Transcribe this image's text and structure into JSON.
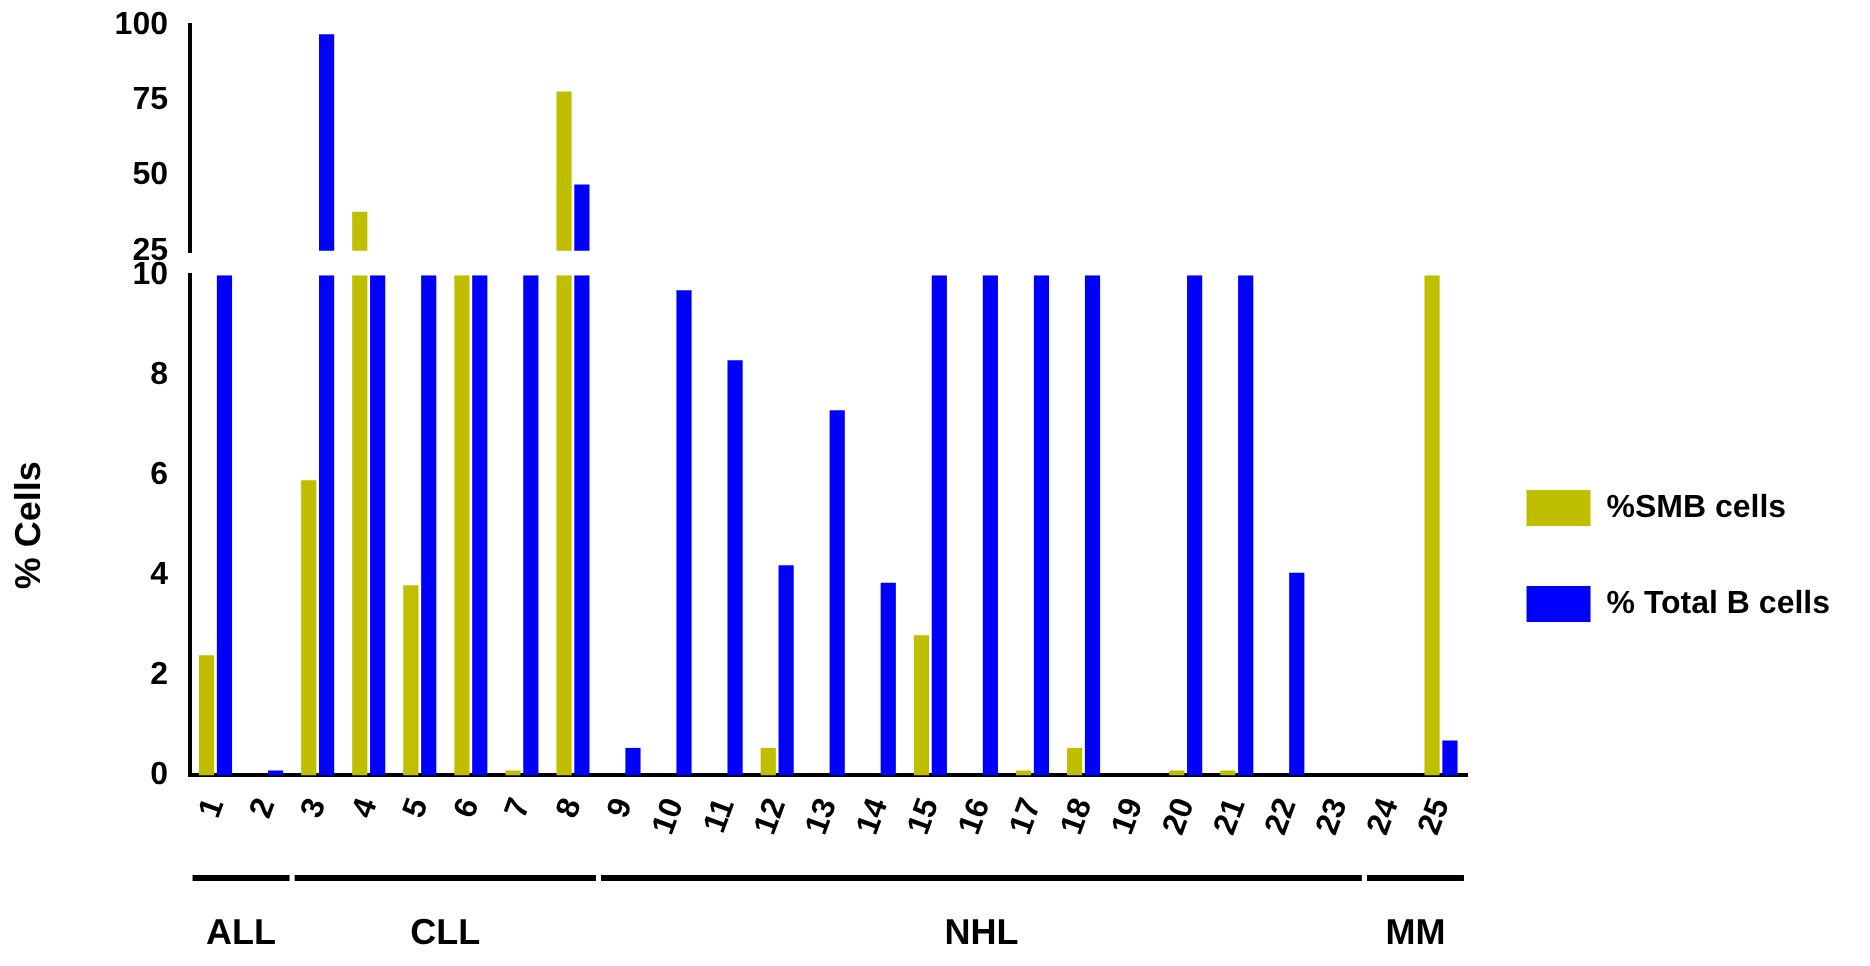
{
  "chart_data": [
    {
      "type": "bar",
      "categories": [
        "1",
        "2",
        "3",
        "4",
        "5",
        "6",
        "7",
        "8",
        "9",
        "10",
        "11",
        "12",
        "13",
        "14",
        "15",
        "16",
        "17",
        "18",
        "19",
        "20",
        "21",
        "22",
        "23",
        "24",
        "25"
      ],
      "series": [
        {
          "color": "#bfbf00",
          "values": [
            null,
            null,
            null,
            38,
            null,
            null,
            null,
            78,
            null,
            null,
            null,
            null,
            null,
            null,
            null,
            null,
            null,
            null,
            null,
            null,
            null,
            null,
            null,
            null,
            null
          ]
        },
        {
          "color": "#0000ff",
          "values": [
            null,
            null,
            97,
            null,
            null,
            null,
            null,
            47,
            null,
            null,
            null,
            null,
            null,
            null,
            null,
            null,
            null,
            null,
            null,
            null,
            null,
            null,
            null,
            null,
            null
          ]
        }
      ],
      "ylim": [
        25,
        100
      ],
      "yticks": [
        25,
        50,
        75,
        100
      ],
      "grid": false,
      "legend": false,
      "tick_labels": "y"
    },
    {
      "type": "bar",
      "categories": [
        "1",
        "2",
        "3",
        "4",
        "5",
        "6",
        "7",
        "8",
        "9",
        "10",
        "11",
        "12",
        "13",
        "14",
        "15",
        "16",
        "17",
        "18",
        "19",
        "20",
        "21",
        "22",
        "23",
        "24",
        "25"
      ],
      "series": [
        {
          "name": "%SMB cells",
          "color": "#bfbf00",
          "values": [
            2.4,
            0,
            5.9,
            10,
            3.8,
            10,
            0.1,
            10,
            0,
            0,
            0,
            0.55,
            0,
            0,
            2.8,
            0,
            0.1,
            0.55,
            0,
            0.1,
            0.1,
            0,
            0,
            0,
            10
          ]
        },
        {
          "name": "% Total B cells",
          "color": "#0000ff",
          "values": [
            10,
            0.1,
            10,
            10,
            10,
            10,
            10,
            10,
            0.55,
            9.7,
            8.3,
            4.2,
            7.3,
            3.85,
            10,
            10,
            10,
            10,
            0,
            10,
            10,
            4.05,
            0,
            0,
            0.7
          ]
        }
      ],
      "ylabel": "% Cells",
      "ylim": [
        0,
        10
      ],
      "yticks": [
        0,
        2,
        4,
        6,
        8,
        10
      ],
      "grid": false,
      "legend": "right",
      "annotations": [
        "ALL",
        "CLL",
        "NHL",
        "MM"
      ]
    }
  ]
}
